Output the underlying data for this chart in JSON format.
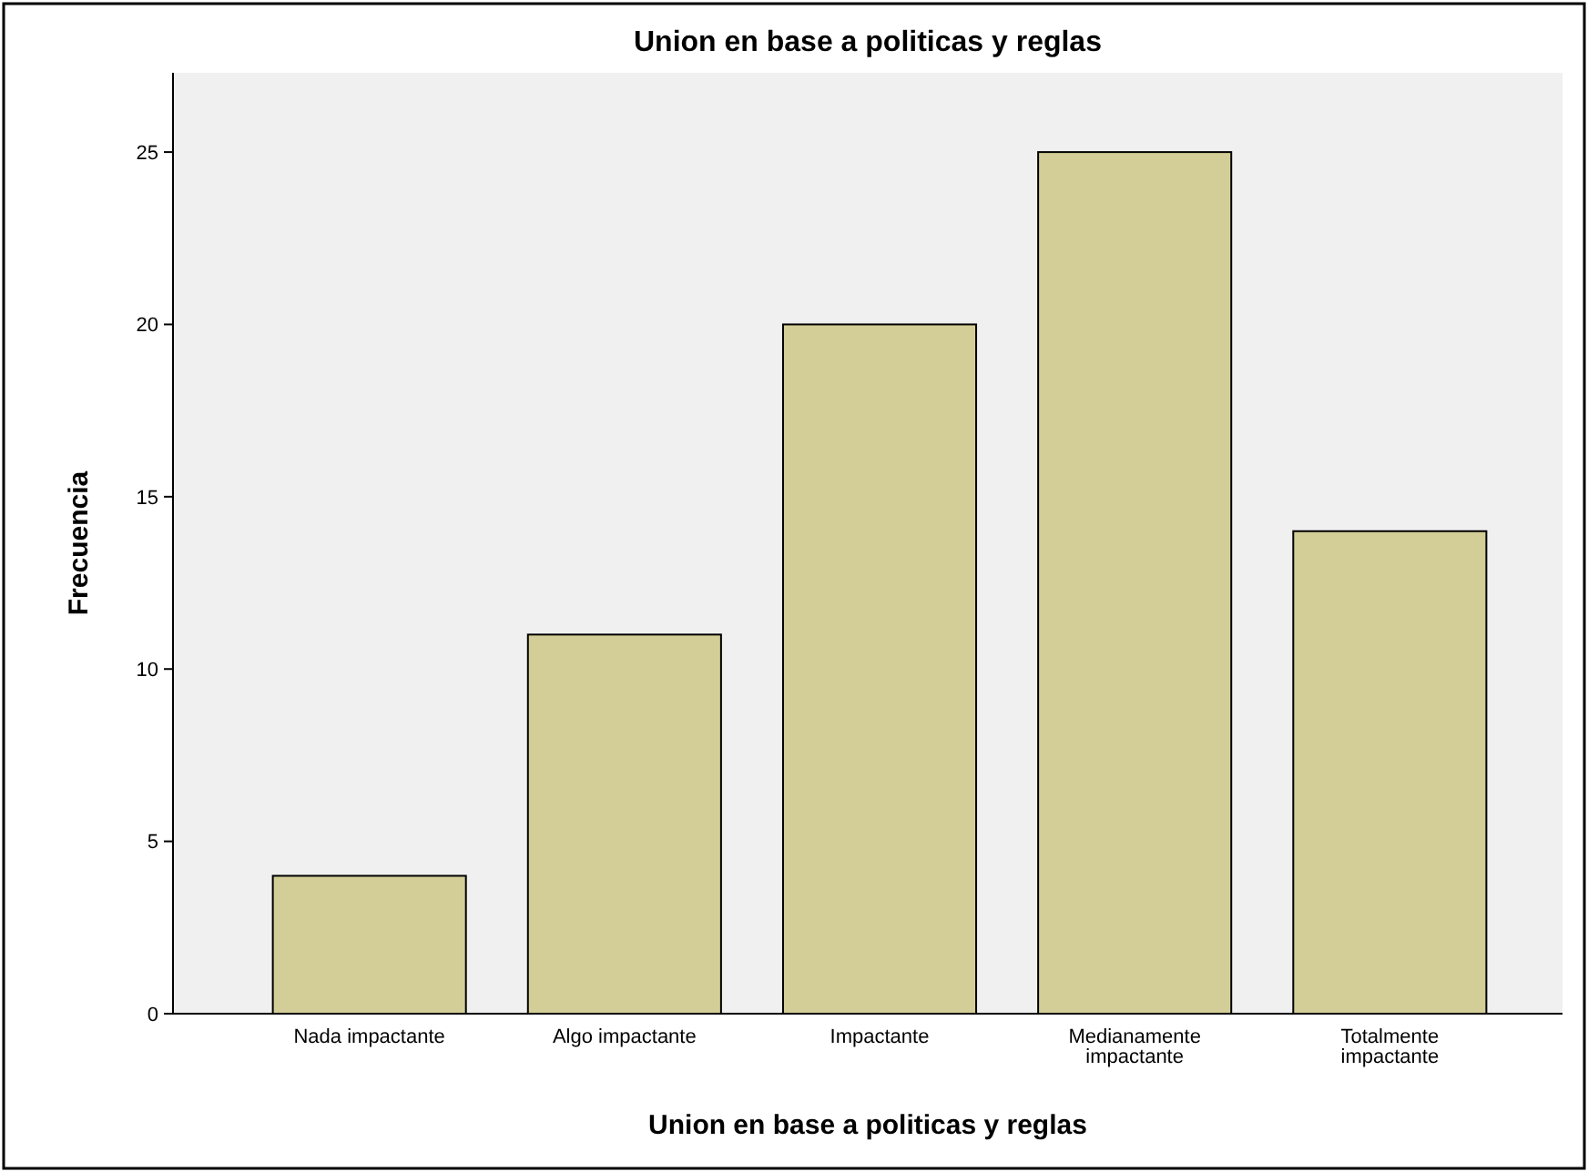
{
  "chart_data": {
    "type": "bar",
    "title": "Union en base a politicas y reglas",
    "xlabel": "Union en base a politicas y reglas",
    "ylabel": "Frecuencia",
    "categories": [
      "Nada impactante",
      "Algo impactante",
      "Impactante",
      "Medianamente impactante",
      "Totalmente impactante"
    ],
    "values": [
      4,
      11,
      20,
      25,
      14
    ],
    "color": "#d3ce97",
    "ylim": [
      0,
      27.3
    ],
    "yticks": [
      0,
      5,
      10,
      15,
      20,
      25
    ],
    "grid": false
  }
}
